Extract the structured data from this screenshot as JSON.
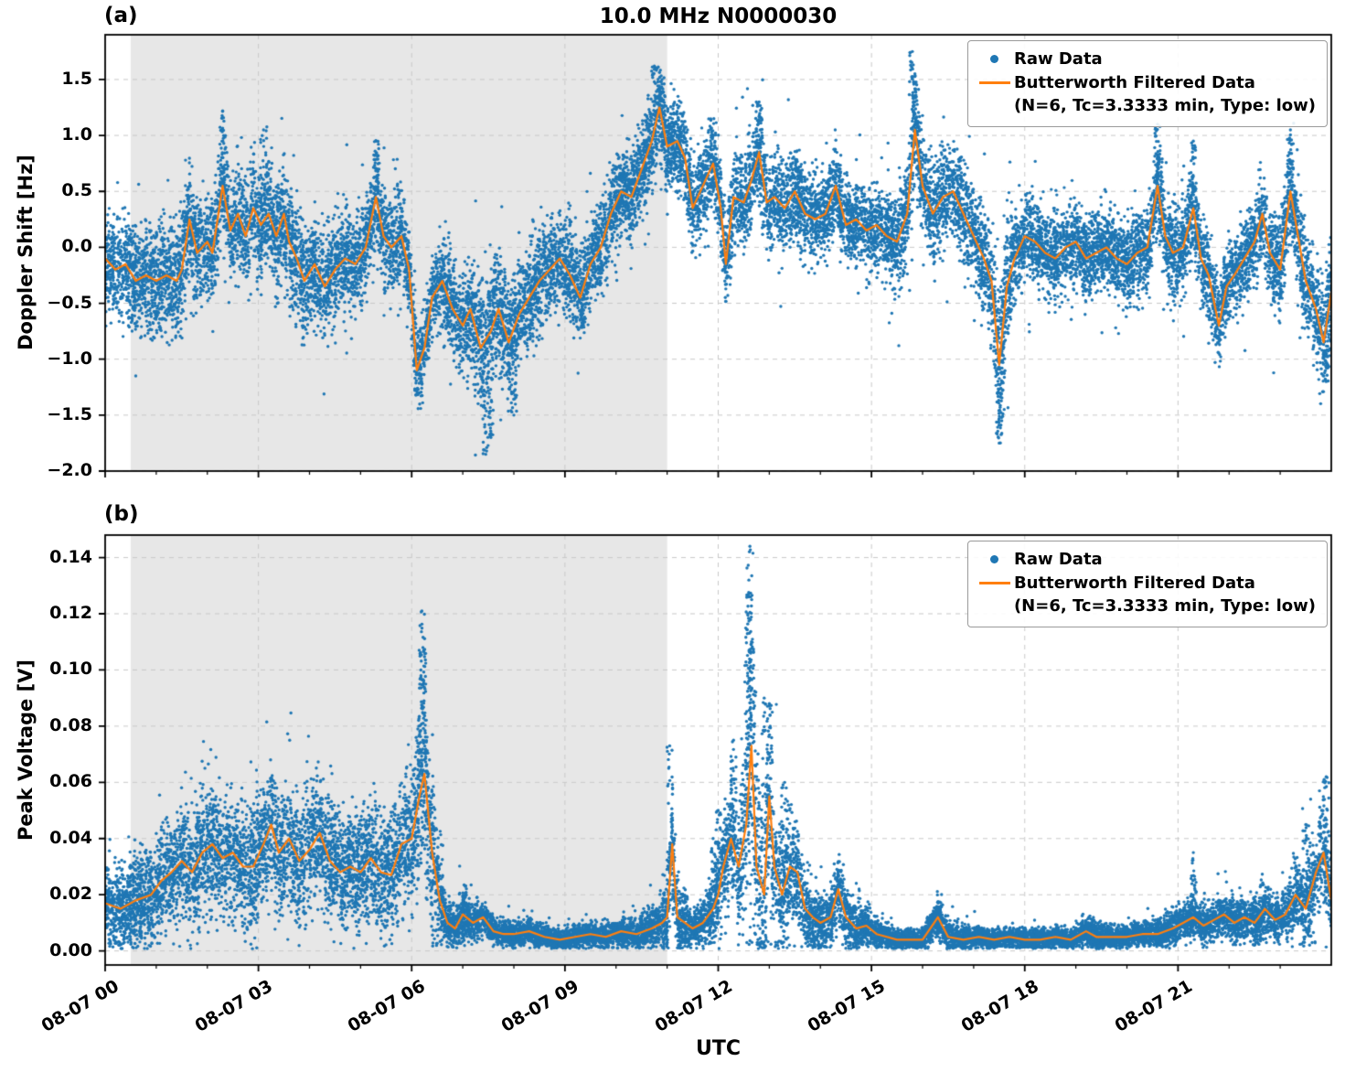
{
  "title": "10.0 MHz N0000030",
  "xlabel": "UTC",
  "panel_a": {
    "tag": "(a)",
    "ylabel": "Doppler Shift [Hz]"
  },
  "panel_b": {
    "tag": "(b)",
    "ylabel": "Peak Voltage [V]"
  },
  "legend": {
    "raw_label": "Raw Data",
    "filtered_label": "Butterworth Filtered Data",
    "filtered_sublabel": "(N=6, Tc=3.3333 min, Type: low)"
  },
  "colors": {
    "raw": "#1f77b4",
    "filtered": "#ff7f0e",
    "shade": "#e7e7e7",
    "grid": "#c9c9c9",
    "axis": "#000000",
    "background": "#ffffff"
  },
  "chart_data": [
    {
      "type": "scatter",
      "panel": "a",
      "title": "10.0 MHz N0000030",
      "ylabel": "Doppler Shift [Hz]",
      "xlim_hours": [
        0,
        24
      ],
      "ylim": [
        -2.0,
        1.9
      ],
      "grid": true,
      "legend_loc": "upper right",
      "shaded_region_hours": [
        0.5,
        11.0
      ],
      "yticks": {
        "values": [
          1.5,
          1.0,
          0.5,
          0.0,
          -0.5,
          -1.0,
          -1.5,
          -2.0
        ],
        "labels": [
          "1.5",
          "1.0",
          "0.5",
          "0.0",
          "−0.5",
          "−1.0",
          "−1.5",
          "−2.0"
        ]
      },
      "xticks": {
        "hours": [
          0,
          3,
          6,
          9,
          12,
          15,
          18,
          21
        ],
        "labels": [
          "08-07 00",
          "08-07 03",
          "08-07 06",
          "08-07 09",
          "08-07 12",
          "08-07 15",
          "08-07 18",
          "08-07 21"
        ]
      },
      "series": [
        {
          "name": "Raw Data",
          "style": "scatter",
          "color": "#1f77b4"
        },
        {
          "name": "Butterworth Filtered Data (N=6, Tc=3.3333 min, Type: low)",
          "style": "line",
          "color": "#ff7f0e",
          "x_hours": [
            0,
            0.2,
            0.4,
            0.6,
            0.8,
            1.0,
            1.2,
            1.4,
            1.5,
            1.65,
            1.8,
            2.0,
            2.1,
            2.3,
            2.45,
            2.6,
            2.75,
            2.9,
            3.05,
            3.2,
            3.35,
            3.5,
            3.6,
            3.75,
            3.9,
            4.1,
            4.3,
            4.5,
            4.7,
            4.9,
            5.1,
            5.3,
            5.45,
            5.6,
            5.8,
            5.95,
            6.1,
            6.25,
            6.4,
            6.6,
            6.8,
            7.0,
            7.15,
            7.35,
            7.55,
            7.7,
            7.9,
            8.1,
            8.3,
            8.5,
            8.7,
            8.9,
            9.1,
            9.3,
            9.5,
            9.7,
            9.9,
            10.1,
            10.3,
            10.5,
            10.7,
            10.85,
            11.0,
            11.2,
            11.35,
            11.5,
            11.7,
            11.9,
            12.05,
            12.15,
            12.3,
            12.5,
            12.65,
            12.8,
            12.95,
            13.1,
            13.3,
            13.5,
            13.7,
            13.9,
            14.1,
            14.3,
            14.5,
            14.7,
            14.9,
            15.1,
            15.3,
            15.5,
            15.7,
            15.85,
            16.0,
            16.2,
            16.4,
            16.6,
            16.8,
            17.0,
            17.2,
            17.35,
            17.5,
            17.65,
            17.8,
            18.0,
            18.2,
            18.4,
            18.6,
            18.8,
            19.0,
            19.2,
            19.4,
            19.6,
            19.8,
            20.0,
            20.2,
            20.4,
            20.6,
            20.75,
            20.9,
            21.1,
            21.3,
            21.45,
            21.6,
            21.8,
            21.95,
            22.1,
            22.3,
            22.5,
            22.65,
            22.8,
            23.0,
            23.2,
            23.35,
            23.5,
            23.7,
            23.85,
            24.0
          ],
          "y": [
            -0.1,
            -0.2,
            -0.15,
            -0.3,
            -0.25,
            -0.3,
            -0.25,
            -0.3,
            -0.2,
            0.25,
            -0.05,
            0.05,
            -0.05,
            0.55,
            0.15,
            0.3,
            0.1,
            0.35,
            0.2,
            0.3,
            0.1,
            0.3,
            0.05,
            -0.1,
            -0.3,
            -0.15,
            -0.35,
            -0.2,
            -0.1,
            -0.15,
            0.0,
            0.45,
            0.1,
            0.0,
            0.1,
            -0.2,
            -1.1,
            -0.9,
            -0.45,
            -0.3,
            -0.55,
            -0.7,
            -0.55,
            -0.9,
            -0.75,
            -0.55,
            -0.85,
            -0.6,
            -0.45,
            -0.3,
            -0.2,
            -0.1,
            -0.25,
            -0.45,
            -0.15,
            0.0,
            0.3,
            0.5,
            0.45,
            0.7,
            0.95,
            1.25,
            0.9,
            0.95,
            0.8,
            0.35,
            0.55,
            0.75,
            0.35,
            -0.15,
            0.45,
            0.4,
            0.6,
            0.85,
            0.4,
            0.45,
            0.35,
            0.5,
            0.3,
            0.25,
            0.3,
            0.55,
            0.2,
            0.25,
            0.15,
            0.2,
            0.1,
            0.05,
            0.3,
            1.05,
            0.55,
            0.3,
            0.45,
            0.5,
            0.3,
            0.1,
            -0.1,
            -0.3,
            -1.05,
            -0.35,
            -0.1,
            0.1,
            0.05,
            -0.05,
            -0.1,
            0.0,
            0.05,
            -0.1,
            -0.05,
            0.0,
            -0.1,
            -0.15,
            -0.05,
            0.0,
            0.55,
            0.1,
            -0.05,
            0.0,
            0.35,
            -0.1,
            -0.25,
            -0.7,
            -0.35,
            -0.25,
            -0.1,
            0.05,
            0.3,
            -0.05,
            -0.2,
            0.5,
            0.1,
            -0.3,
            -0.55,
            -0.85,
            -0.4
          ]
        }
      ],
      "raw_band": {
        "x_hours": [
          0,
          1,
          2,
          3,
          4,
          5,
          6,
          6.5,
          7,
          7.5,
          8,
          9,
          10,
          10.8,
          11.5,
          12,
          13,
          14,
          15,
          15.8,
          16.5,
          17,
          17.5,
          18,
          19,
          20,
          21,
          22,
          23,
          24
        ],
        "halfwidth": [
          0.35,
          0.4,
          0.4,
          0.4,
          0.4,
          0.35,
          0.35,
          0.3,
          0.4,
          0.45,
          0.4,
          0.35,
          0.35,
          0.35,
          0.3,
          0.35,
          0.35,
          0.3,
          0.3,
          0.4,
          0.35,
          0.35,
          0.5,
          0.3,
          0.3,
          0.3,
          0.35,
          0.3,
          0.35,
          0.4
        ]
      },
      "raw_outliers": [
        [
          2.3,
          1.22
        ],
        [
          3.1,
          1.05
        ],
        [
          5.3,
          0.95
        ],
        [
          7.45,
          -1.85
        ],
        [
          7.55,
          -1.7
        ],
        [
          8.0,
          -1.5
        ],
        [
          10.75,
          1.62
        ],
        [
          10.9,
          1.5
        ],
        [
          12.8,
          1.3
        ],
        [
          15.8,
          1.75
        ],
        [
          15.85,
          1.55
        ],
        [
          17.5,
          -1.75
        ],
        [
          17.55,
          -1.55
        ],
        [
          20.6,
          1.1
        ],
        [
          21.3,
          0.95
        ],
        [
          23.2,
          1.05
        ],
        [
          23.9,
          -1.2
        ]
      ]
    },
    {
      "type": "scatter",
      "panel": "b",
      "ylabel": "Peak Voltage [V]",
      "xlim_hours": [
        0,
        24
      ],
      "ylim": [
        -0.005,
        0.148
      ],
      "grid": true,
      "legend_loc": "upper right",
      "shaded_region_hours": [
        0.5,
        11.0
      ],
      "yticks": {
        "values": [
          0.14,
          0.12,
          0.1,
          0.08,
          0.06,
          0.04,
          0.02,
          0.0
        ],
        "labels": [
          "0.14",
          "0.12",
          "0.10",
          "0.08",
          "0.06",
          "0.04",
          "0.02",
          "0.00"
        ]
      },
      "xticks": {
        "hours": [
          0,
          3,
          6,
          9,
          12,
          15,
          18,
          21
        ],
        "labels": [
          "08-07 00",
          "08-07 03",
          "08-07 06",
          "08-07 09",
          "08-07 12",
          "08-07 15",
          "08-07 18",
          "08-07 21"
        ]
      },
      "series": [
        {
          "name": "Raw Data",
          "style": "scatter",
          "color": "#1f77b4"
        },
        {
          "name": "Butterworth Filtered Data (N=6, Tc=3.3333 min, Type: low)",
          "style": "line",
          "color": "#ff7f0e",
          "x_hours": [
            0,
            0.3,
            0.6,
            0.9,
            1.1,
            1.3,
            1.5,
            1.7,
            1.9,
            2.1,
            2.3,
            2.5,
            2.7,
            2.9,
            3.1,
            3.25,
            3.4,
            3.6,
            3.8,
            4.0,
            4.2,
            4.4,
            4.6,
            4.8,
            5.0,
            5.2,
            5.4,
            5.6,
            5.8,
            6.0,
            6.15,
            6.25,
            6.4,
            6.55,
            6.7,
            6.85,
            7.0,
            7.2,
            7.4,
            7.6,
            7.8,
            8.0,
            8.3,
            8.6,
            8.9,
            9.2,
            9.5,
            9.8,
            10.1,
            10.4,
            10.7,
            10.9,
            11.0,
            11.1,
            11.2,
            11.35,
            11.5,
            11.7,
            11.9,
            12.0,
            12.1,
            12.25,
            12.4,
            12.55,
            12.65,
            12.75,
            12.9,
            13.0,
            13.1,
            13.25,
            13.4,
            13.55,
            13.7,
            13.85,
            14.0,
            14.2,
            14.35,
            14.5,
            14.7,
            14.9,
            15.1,
            15.3,
            15.5,
            15.7,
            16.0,
            16.3,
            16.5,
            16.8,
            17.1,
            17.4,
            17.7,
            18.0,
            18.3,
            18.6,
            18.9,
            19.2,
            19.4,
            19.7,
            20.0,
            20.3,
            20.6,
            20.9,
            21.1,
            21.3,
            21.5,
            21.7,
            21.9,
            22.1,
            22.3,
            22.5,
            22.7,
            22.9,
            23.1,
            23.3,
            23.5,
            23.7,
            23.85,
            24.0
          ],
          "y": [
            0.017,
            0.015,
            0.018,
            0.02,
            0.025,
            0.028,
            0.032,
            0.028,
            0.035,
            0.038,
            0.033,
            0.035,
            0.03,
            0.03,
            0.038,
            0.045,
            0.035,
            0.04,
            0.032,
            0.036,
            0.042,
            0.032,
            0.028,
            0.03,
            0.028,
            0.033,
            0.028,
            0.027,
            0.038,
            0.04,
            0.055,
            0.063,
            0.035,
            0.018,
            0.01,
            0.008,
            0.013,
            0.01,
            0.012,
            0.007,
            0.006,
            0.006,
            0.007,
            0.005,
            0.004,
            0.005,
            0.006,
            0.005,
            0.007,
            0.006,
            0.008,
            0.01,
            0.012,
            0.038,
            0.012,
            0.01,
            0.008,
            0.01,
            0.015,
            0.02,
            0.03,
            0.04,
            0.03,
            0.045,
            0.073,
            0.03,
            0.02,
            0.055,
            0.03,
            0.02,
            0.03,
            0.028,
            0.015,
            0.012,
            0.01,
            0.012,
            0.022,
            0.012,
            0.008,
            0.009,
            0.006,
            0.005,
            0.004,
            0.004,
            0.004,
            0.012,
            0.005,
            0.004,
            0.005,
            0.004,
            0.005,
            0.004,
            0.004,
            0.005,
            0.004,
            0.007,
            0.005,
            0.005,
            0.005,
            0.006,
            0.006,
            0.008,
            0.01,
            0.012,
            0.009,
            0.011,
            0.013,
            0.01,
            0.012,
            0.01,
            0.015,
            0.011,
            0.013,
            0.02,
            0.015,
            0.028,
            0.035,
            0.018
          ]
        }
      ],
      "raw_band": {
        "x_hours": [
          0,
          1,
          2,
          3,
          4,
          5,
          6,
          6.3,
          6.7,
          7,
          7.5,
          8,
          9,
          10,
          10.8,
          11.1,
          11.5,
          12,
          12.4,
          12.65,
          13,
          13.5,
          14,
          14.35,
          15,
          15.5,
          16,
          16.3,
          17,
          18,
          19,
          19.3,
          20,
          21,
          21.5,
          22,
          22.7,
          23,
          23.3,
          23.8,
          24
        ],
        "halfwidth": [
          0.012,
          0.015,
          0.018,
          0.018,
          0.018,
          0.016,
          0.02,
          0.03,
          0.006,
          0.008,
          0.004,
          0.004,
          0.003,
          0.004,
          0.006,
          0.015,
          0.004,
          0.012,
          0.018,
          0.045,
          0.025,
          0.015,
          0.008,
          0.01,
          0.005,
          0.003,
          0.003,
          0.006,
          0.003,
          0.003,
          0.003,
          0.005,
          0.003,
          0.005,
          0.006,
          0.006,
          0.008,
          0.006,
          0.01,
          0.015,
          0.012
        ]
      },
      "raw_outliers": [
        [
          6.2,
          0.121
        ],
        [
          6.22,
          0.108
        ],
        [
          6.18,
          0.1
        ],
        [
          11.05,
          0.073
        ],
        [
          11.9,
          0.04
        ],
        [
          12.0,
          0.05
        ],
        [
          12.3,
          0.075
        ],
        [
          12.62,
          0.144
        ],
        [
          12.6,
          0.132
        ],
        [
          12.58,
          0.12
        ],
        [
          12.65,
          0.11
        ],
        [
          12.9,
          0.09
        ],
        [
          13.0,
          0.088
        ],
        [
          13.3,
          0.06
        ],
        [
          21.3,
          0.035
        ],
        [
          23.5,
          0.045
        ],
        [
          23.9,
          0.062
        ]
      ]
    }
  ]
}
